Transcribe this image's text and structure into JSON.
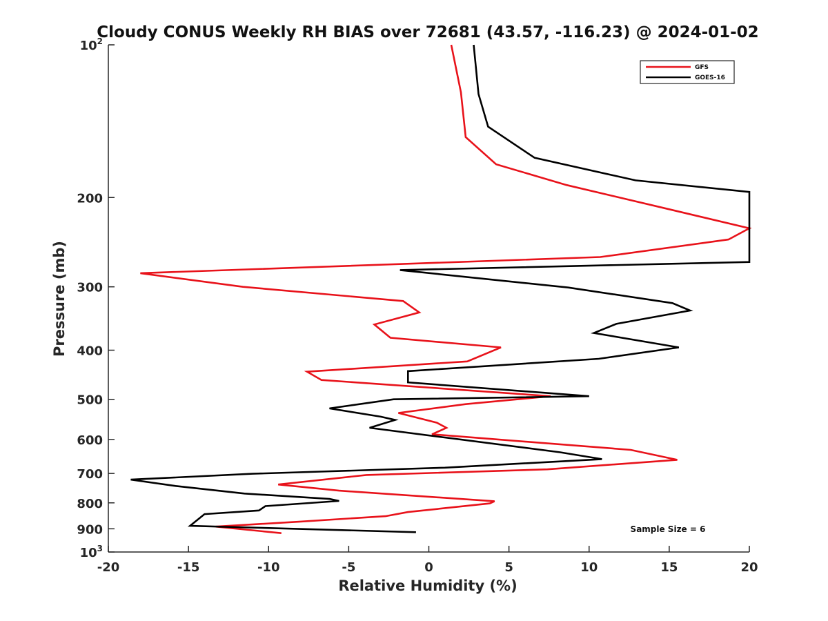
{
  "chart_data": {
    "type": "line",
    "title": "Cloudy CONUS Weekly RH BIAS over 72681 (43.57, -116.23) @ 2024-01-02",
    "xlabel": "Relative Humidity (%)",
    "ylabel": "Pressure (mb)",
    "xlim": [
      -20,
      20
    ],
    "ylim": [
      100,
      1000
    ],
    "y_scale": "log",
    "y_reversed": true,
    "grid": false,
    "legend_position": "top-right",
    "x_ticks": [
      {
        "value": -20,
        "label": "-20"
      },
      {
        "value": -15,
        "label": "-15"
      },
      {
        "value": -10,
        "label": "-10"
      },
      {
        "value": -5,
        "label": "-5"
      },
      {
        "value": 0,
        "label": "0"
      },
      {
        "value": 5,
        "label": "5"
      },
      {
        "value": 10,
        "label": "10"
      },
      {
        "value": 15,
        "label": "15"
      },
      {
        "value": 20,
        "label": "20"
      }
    ],
    "y_ticks": [
      {
        "value": 100,
        "base": "10",
        "exp": "2"
      },
      {
        "value": 200,
        "base": "200",
        "exp": ""
      },
      {
        "value": 300,
        "base": "300",
        "exp": ""
      },
      {
        "value": 400,
        "base": "400",
        "exp": ""
      },
      {
        "value": 500,
        "base": "500",
        "exp": ""
      },
      {
        "value": 600,
        "base": "600",
        "exp": ""
      },
      {
        "value": 700,
        "base": "700",
        "exp": ""
      },
      {
        "value": 800,
        "base": "800",
        "exp": ""
      },
      {
        "value": 900,
        "base": "900",
        "exp": ""
      },
      {
        "value": 1000,
        "base": "10",
        "exp": "3"
      }
    ],
    "annotation": "Sample Size = 6",
    "series": [
      {
        "name": "GFS",
        "color": "#e8121a",
        "x": [
          1.4,
          2.0,
          2.3,
          4.2,
          8.6,
          15.0,
          20.0,
          18.7,
          10.7,
          -18.0,
          -11.6,
          -1.6,
          -0.6,
          -3.4,
          -2.4,
          4.5,
          2.4,
          -7.6,
          -6.7,
          7.6,
          2.3,
          -1.9,
          0.5,
          1.1,
          0.2,
          12.6,
          15.5,
          7.4,
          -3.9,
          -9.4,
          -5.6,
          4.1,
          3.8,
          -1.3,
          -2.7,
          -8.0,
          -13.3,
          -9.2
        ],
        "y": [
          100,
          124,
          152,
          172,
          189,
          211,
          230,
          242,
          262,
          282,
          300,
          320,
          337,
          356,
          378,
          395,
          421,
          441,
          458,
          493,
          511,
          532,
          556,
          569,
          586,
          629,
          658,
          687,
          705,
          736,
          757,
          794,
          802,
          834,
          850,
          871,
          891,
          918
        ]
      },
      {
        "name": "GOES-16",
        "color": "#000000",
        "x": [
          2.8,
          3.1,
          3.7,
          6.6,
          12.9,
          20.0,
          20.0,
          -1.8,
          8.7,
          15.2,
          16.3,
          11.7,
          10.3,
          15.6,
          10.6,
          -1.3,
          -1.3,
          10.0,
          -2.2,
          -6.2,
          -3.0,
          -2.1,
          -3.7,
          8.2,
          10.8,
          1.0,
          -11.0,
          -18.6,
          -15.8,
          -11.5,
          -6.2,
          -5.6,
          -10.2,
          -10.6,
          -14.0,
          -14.9,
          -0.8
        ],
        "y": [
          100,
          125,
          145,
          167,
          185,
          195,
          268,
          278,
          301,
          323,
          334,
          355,
          370,
          395,
          416,
          440,
          463,
          493,
          500,
          521,
          541,
          549,
          569,
          636,
          656,
          682,
          701,
          720,
          741,
          767,
          786,
          793,
          812,
          828,
          842,
          888,
          914
        ]
      }
    ]
  }
}
